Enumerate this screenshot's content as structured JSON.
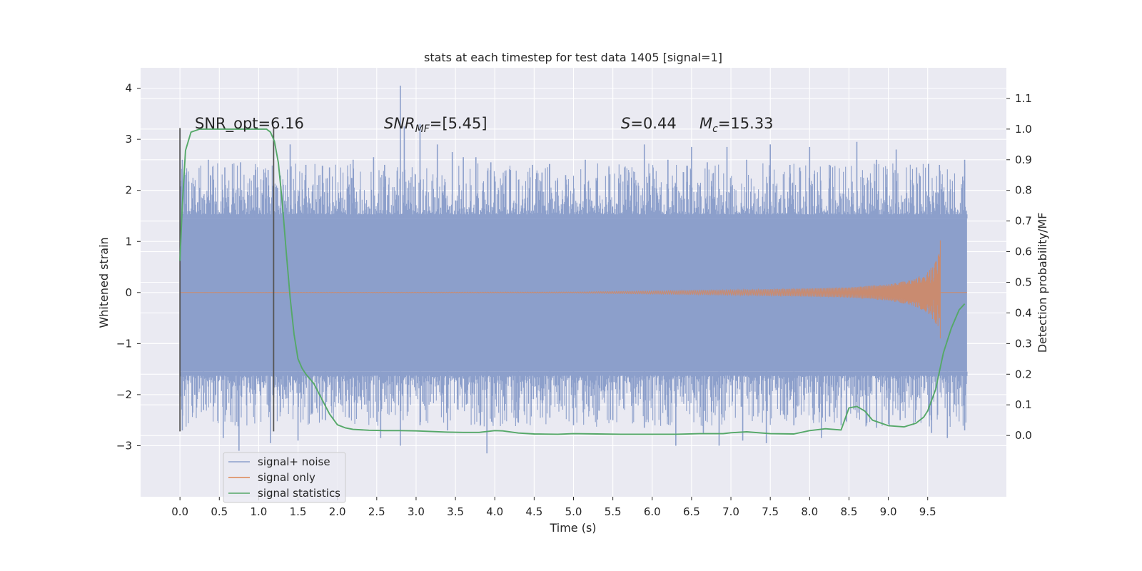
{
  "chart_data": {
    "type": "line",
    "title": "stats at each timestep for test data 1405 [signal=1]",
    "xlabel": "Time (s)",
    "ylabel": "Whitened strain",
    "ylabel_right": "Detection probability/MF",
    "xlim": [
      -0.5,
      10.5
    ],
    "ylim": [
      -4.0,
      4.4
    ],
    "ylim_right": [
      -0.2,
      1.2
    ],
    "x_ticks": [
      0.0,
      0.5,
      1.0,
      1.5,
      2.0,
      2.5,
      3.0,
      3.5,
      4.0,
      4.5,
      5.0,
      5.5,
      6.0,
      6.5,
      7.0,
      7.5,
      8.0,
      8.5,
      9.0,
      9.5
    ],
    "x_tick_labels": [
      "0.0",
      "0.5",
      "1.0",
      "1.5",
      "2.0",
      "2.5",
      "3.0",
      "3.5",
      "4.0",
      "4.5",
      "5.0",
      "5.5",
      "6.0",
      "6.5",
      "7.0",
      "7.5",
      "8.0",
      "8.5",
      "9.0",
      "9.5"
    ],
    "y_ticks": [
      -3,
      -2,
      -1,
      0,
      1,
      2,
      3,
      4
    ],
    "y_tick_labels": [
      "−3",
      "−2",
      "−1",
      "0",
      "1",
      "2",
      "3",
      "4"
    ],
    "y_right_ticks": [
      0.0,
      0.1,
      0.2,
      0.3,
      0.4,
      0.5,
      0.6,
      0.7,
      0.8,
      0.9,
      1.0,
      1.1
    ],
    "y_right_tick_labels": [
      "0.0",
      "0.1",
      "0.2",
      "0.3",
      "0.4",
      "0.5",
      "0.6",
      "0.7",
      "0.8",
      "0.9",
      "1.0",
      "1.1"
    ],
    "grid": true,
    "legend_position": "lower-left",
    "annotations": {
      "snr_opt": "SNR_opt=6.16",
      "snr_mf_main": "SNR",
      "snr_mf_sub": "MF",
      "snr_mf_value": "=[5.45]",
      "s_symbol": "S",
      "s_value": "=0.44",
      "mc_symbol": "M",
      "mc_sub": "c",
      "mc_value": "=15.33"
    },
    "vlines": [
      {
        "x": 0.0,
        "ymin": -2.72,
        "ymax": 3.22
      },
      {
        "x": 1.19,
        "ymin": -2.72,
        "ymax": 3.22
      }
    ],
    "series": [
      {
        "name": "signal+ noise",
        "color": "#8c9fcb",
        "axis": "left",
        "x_range": [
          0.0,
          10.0
        ],
        "envelope_upper": 1.45,
        "envelope_lower": -1.55,
        "spike_peaks": [
          {
            "x": 0.03,
            "y": 2.6
          },
          {
            "x": 0.08,
            "y": 2.35
          },
          {
            "x": 0.36,
            "y": 2.6
          },
          {
            "x": 0.57,
            "y": 2.45
          },
          {
            "x": 0.77,
            "y": 2.55
          },
          {
            "x": 0.94,
            "y": 2.3
          },
          {
            "x": 1.12,
            "y": 2.4
          },
          {
            "x": 1.4,
            "y": 2.9
          },
          {
            "x": 1.6,
            "y": 2.5
          },
          {
            "x": 1.9,
            "y": 2.45
          },
          {
            "x": 2.2,
            "y": 2.6
          },
          {
            "x": 2.46,
            "y": 2.65
          },
          {
            "x": 2.6,
            "y": 2.5
          },
          {
            "x": 2.8,
            "y": 4.05
          },
          {
            "x": 2.85,
            "y": 3.25
          },
          {
            "x": 3.05,
            "y": 3.3
          },
          {
            "x": 3.27,
            "y": 2.9
          },
          {
            "x": 3.46,
            "y": 2.75
          },
          {
            "x": 3.6,
            "y": 2.65
          },
          {
            "x": 3.76,
            "y": 2.65
          },
          {
            "x": 3.95,
            "y": 2.55
          },
          {
            "x": 4.2,
            "y": 2.4
          },
          {
            "x": 4.48,
            "y": 2.5
          },
          {
            "x": 4.6,
            "y": 2.35
          },
          {
            "x": 4.9,
            "y": 2.3
          },
          {
            "x": 5.15,
            "y": 2.6
          },
          {
            "x": 5.45,
            "y": 2.45
          },
          {
            "x": 5.65,
            "y": 2.45
          },
          {
            "x": 5.9,
            "y": 2.9
          },
          {
            "x": 6.2,
            "y": 2.6
          },
          {
            "x": 6.5,
            "y": 2.85
          },
          {
            "x": 6.7,
            "y": 2.55
          },
          {
            "x": 6.95,
            "y": 2.85
          },
          {
            "x": 7.2,
            "y": 2.6
          },
          {
            "x": 7.5,
            "y": 2.9
          },
          {
            "x": 7.75,
            "y": 2.5
          },
          {
            "x": 8.0,
            "y": 2.85
          },
          {
            "x": 8.25,
            "y": 2.5
          },
          {
            "x": 8.6,
            "y": 2.95
          },
          {
            "x": 8.85,
            "y": 2.6
          },
          {
            "x": 9.1,
            "y": 2.8
          },
          {
            "x": 9.36,
            "y": 2.45
          },
          {
            "x": 9.65,
            "y": 2.5
          },
          {
            "x": 9.97,
            "y": 2.6
          }
        ],
        "spike_troughs": [
          {
            "x": 0.03,
            "y": -2.7
          },
          {
            "x": 0.3,
            "y": -2.3
          },
          {
            "x": 0.55,
            "y": -2.85
          },
          {
            "x": 0.75,
            "y": -3.1
          },
          {
            "x": 1.15,
            "y": -2.95
          },
          {
            "x": 1.5,
            "y": -2.9
          },
          {
            "x": 1.85,
            "y": -2.5
          },
          {
            "x": 2.15,
            "y": -2.45
          },
          {
            "x": 2.55,
            "y": -2.85
          },
          {
            "x": 2.8,
            "y": -3.0
          },
          {
            "x": 3.05,
            "y": -2.6
          },
          {
            "x": 3.4,
            "y": -2.7
          },
          {
            "x": 3.9,
            "y": -3.15
          },
          {
            "x": 4.3,
            "y": -2.55
          },
          {
            "x": 4.7,
            "y": -2.45
          },
          {
            "x": 5.0,
            "y": -2.6
          },
          {
            "x": 5.5,
            "y": -2.5
          },
          {
            "x": 5.9,
            "y": -2.65
          },
          {
            "x": 6.3,
            "y": -3.0
          },
          {
            "x": 6.65,
            "y": -2.75
          },
          {
            "x": 6.85,
            "y": -3.0
          },
          {
            "x": 7.15,
            "y": -2.9
          },
          {
            "x": 7.45,
            "y": -2.95
          },
          {
            "x": 7.8,
            "y": -2.6
          },
          {
            "x": 8.15,
            "y": -2.85
          },
          {
            "x": 8.4,
            "y": -2.6
          },
          {
            "x": 8.85,
            "y": -2.65
          },
          {
            "x": 9.15,
            "y": -2.5
          },
          {
            "x": 9.55,
            "y": -2.75
          },
          {
            "x": 9.75,
            "y": -2.85
          },
          {
            "x": 9.97,
            "y": -2.7
          }
        ]
      },
      {
        "name": "signal only",
        "color": "#dd8452",
        "axis": "left",
        "x_range": [
          0.0,
          9.66
        ],
        "chirp_amplitude": [
          [
            0.0,
            0.0
          ],
          [
            5.0,
            0.01
          ],
          [
            6.0,
            0.03
          ],
          [
            7.0,
            0.05
          ],
          [
            8.0,
            0.08
          ],
          [
            8.5,
            0.1
          ],
          [
            9.0,
            0.16
          ],
          [
            9.3,
            0.25
          ],
          [
            9.5,
            0.4
          ],
          [
            9.6,
            0.6
          ],
          [
            9.66,
            0.85
          ]
        ],
        "merger_peak": 1.02,
        "merger_trough": -0.9,
        "end_value": 0.0
      },
      {
        "name": "signal statistics",
        "color": "#55a868",
        "axis": "right",
        "x": [
          0.0,
          0.03,
          0.07,
          0.14,
          0.25,
          0.5,
          0.75,
          1.0,
          1.05,
          1.1,
          1.15,
          1.2,
          1.25,
          1.3,
          1.35,
          1.4,
          1.45,
          1.5,
          1.55,
          1.6,
          1.7,
          1.8,
          1.9,
          2.0,
          2.1,
          2.2,
          2.4,
          2.6,
          2.8,
          3.0,
          3.2,
          3.4,
          3.6,
          3.8,
          4.0,
          4.1,
          4.3,
          4.5,
          4.8,
          5.0,
          5.3,
          5.6,
          6.0,
          6.3,
          6.6,
          6.9,
          7.0,
          7.2,
          7.5,
          7.8,
          8.0,
          8.2,
          8.4,
          8.5,
          8.6,
          8.7,
          8.8,
          9.0,
          9.2,
          9.35,
          9.45,
          9.5,
          9.6,
          9.7,
          9.8,
          9.85,
          9.9,
          9.97
        ],
        "y": [
          0.57,
          0.75,
          0.93,
          0.99,
          1.0,
          1.0,
          1.0,
          1.0,
          1.0,
          1.0,
          0.99,
          0.96,
          0.89,
          0.76,
          0.6,
          0.45,
          0.33,
          0.25,
          0.22,
          0.2,
          0.17,
          0.12,
          0.07,
          0.035,
          0.025,
          0.02,
          0.017,
          0.016,
          0.016,
          0.015,
          0.013,
          0.011,
          0.01,
          0.01,
          0.016,
          0.015,
          0.008,
          0.005,
          0.004,
          0.006,
          0.005,
          0.004,
          0.004,
          0.004,
          0.006,
          0.006,
          0.009,
          0.012,
          0.006,
          0.005,
          0.016,
          0.022,
          0.018,
          0.09,
          0.095,
          0.08,
          0.05,
          0.032,
          0.028,
          0.04,
          0.06,
          0.08,
          0.15,
          0.27,
          0.35,
          0.38,
          0.41,
          0.43
        ]
      }
    ]
  }
}
